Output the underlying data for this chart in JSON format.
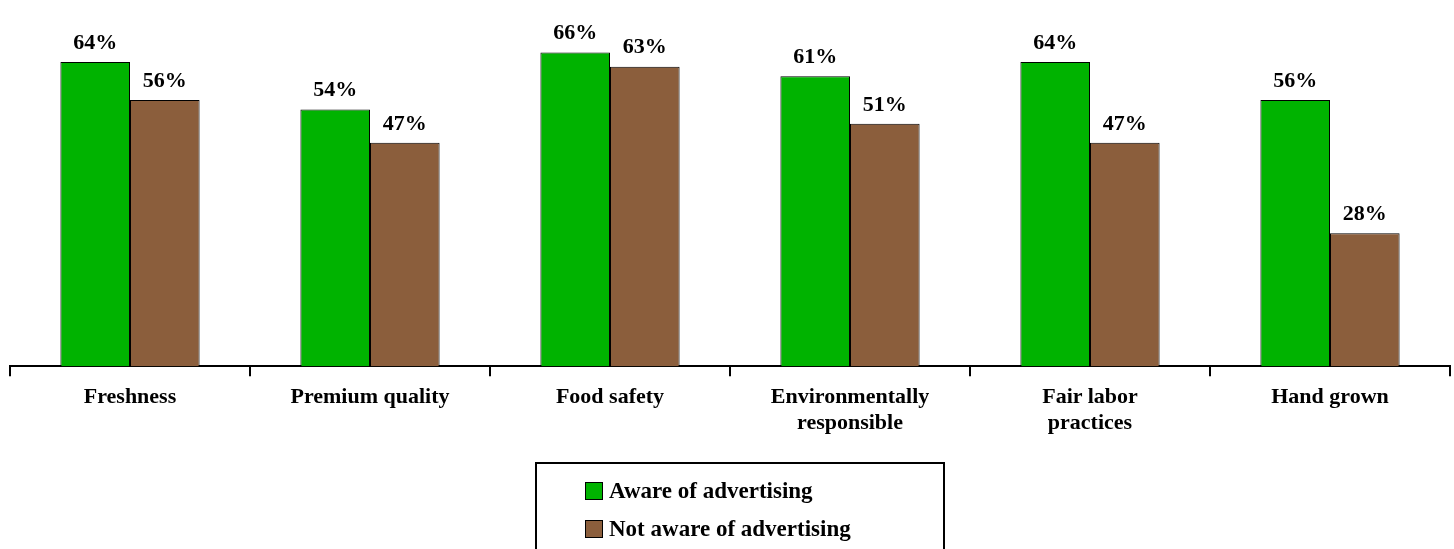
{
  "chart_data": {
    "type": "bar",
    "categories": [
      "Freshness",
      "Premium quality",
      "Food safety",
      "Environmentally responsible",
      "Fair labor practices",
      "Hand grown"
    ],
    "series": [
      {
        "name": "Aware of advertising",
        "color": "#00b300",
        "values": [
          64,
          54,
          66,
          61,
          64,
          56
        ],
        "value_labels": [
          "64%",
          "54%",
          "66%",
          "61%",
          "64%",
          "56%"
        ]
      },
      {
        "name": "Not aware of advertising",
        "color": "#8b5e3c",
        "values": [
          56,
          47,
          63,
          51,
          47,
          28
        ],
        "value_labels": [
          "56%",
          "47%",
          "63%",
          "51%",
          "47%",
          "28%"
        ]
      }
    ],
    "grid": false,
    "legend": "bottom"
  }
}
